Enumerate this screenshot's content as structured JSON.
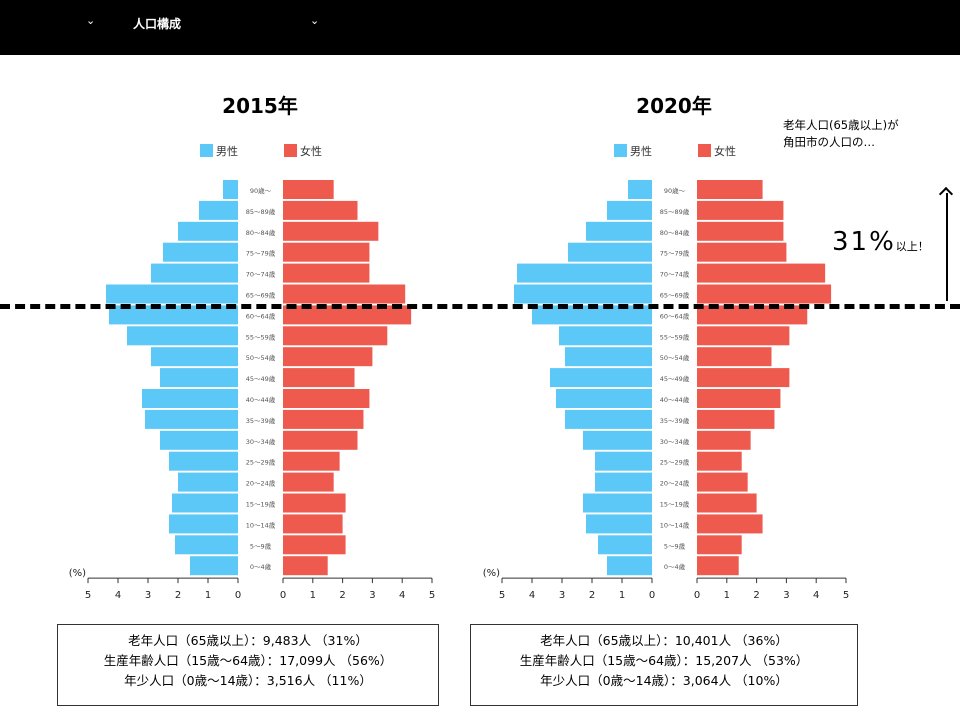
{
  "topbar": {
    "menu_label": "人口構成",
    "chevron": "⌄"
  },
  "colors": {
    "male": "#5bc8f8",
    "female": "#ee5a4e"
  },
  "legend": {
    "male": "男性",
    "female": "女性"
  },
  "annotation": {
    "line1": "老年人口(65歳以上)が",
    "line2": "角田市の人口の…",
    "big_value": "31%",
    "suffix": "以上！"
  },
  "chart_data": [
    {
      "type": "bar",
      "subtype": "population-pyramid",
      "title": "2015年",
      "unit_label": "(%)",
      "xlim": [
        0,
        5
      ],
      "xticks": [
        "5",
        "4",
        "3",
        "2",
        "1",
        "0",
        "0",
        "1",
        "2",
        "3",
        "4",
        "5"
      ],
      "categories": [
        "90歳～",
        "85～89歳",
        "80～84歳",
        "75～79歳",
        "70～74歳",
        "65～69歳",
        "60～64歳",
        "55～59歳",
        "50～54歳",
        "45～49歳",
        "40～44歳",
        "35～39歳",
        "30～34歳",
        "25～29歳",
        "20～24歳",
        "15～19歳",
        "10～14歳",
        "5～9歳",
        "0～4歳"
      ],
      "series": [
        {
          "name": "男性",
          "values": [
            0.5,
            1.3,
            2.0,
            2.5,
            2.9,
            4.4,
            4.3,
            3.7,
            2.9,
            2.6,
            3.2,
            3.1,
            2.6,
            2.3,
            2.0,
            2.2,
            2.3,
            2.1,
            1.6
          ]
        },
        {
          "name": "女性",
          "values": [
            1.7,
            2.5,
            3.2,
            2.9,
            2.9,
            4.1,
            4.3,
            3.5,
            3.0,
            2.4,
            2.9,
            2.7,
            2.5,
            1.9,
            1.7,
            2.1,
            2.0,
            2.1,
            1.5
          ]
        }
      ],
      "summary": [
        "老年人口（65歳以上）：9,483人 （31%）",
        "生産年齢人口（15歳～64歳）：17,099人 （56%）",
        "年少人口（0歳～14歳）：3,516人 （11%）"
      ]
    },
    {
      "type": "bar",
      "subtype": "population-pyramid",
      "title": "2020年",
      "unit_label": "(%)",
      "xlim": [
        0,
        5
      ],
      "xticks": [
        "5",
        "4",
        "3",
        "2",
        "1",
        "0",
        "0",
        "1",
        "2",
        "3",
        "4",
        "5"
      ],
      "categories": [
        "90歳～",
        "85～89歳",
        "80～84歳",
        "75～79歳",
        "70～74歳",
        "65～69歳",
        "60～64歳",
        "55～59歳",
        "50～54歳",
        "45～49歳",
        "40～44歳",
        "35～39歳",
        "30～34歳",
        "25～29歳",
        "20～24歳",
        "15～19歳",
        "10～14歳",
        "5～9歳",
        "0～4歳"
      ],
      "series": [
        {
          "name": "男性",
          "values": [
            0.8,
            1.5,
            2.2,
            2.8,
            4.5,
            4.6,
            4.0,
            3.1,
            2.9,
            3.4,
            3.2,
            2.9,
            2.3,
            1.9,
            1.9,
            2.3,
            2.2,
            1.8,
            1.5
          ]
        },
        {
          "name": "女性",
          "values": [
            2.2,
            2.9,
            2.9,
            3.0,
            4.3,
            4.5,
            3.7,
            3.1,
            2.5,
            3.1,
            2.8,
            2.6,
            1.8,
            1.5,
            1.7,
            2.0,
            2.2,
            1.5,
            1.4
          ]
        }
      ],
      "summary": [
        "老年人口（65歳以上）：10,401人 （36%）",
        "生産年齢人口（15歳～64歳）：15,207人 （53%）",
        "年少人口（0歳～14歳）：3,064人 （10%）"
      ]
    }
  ]
}
